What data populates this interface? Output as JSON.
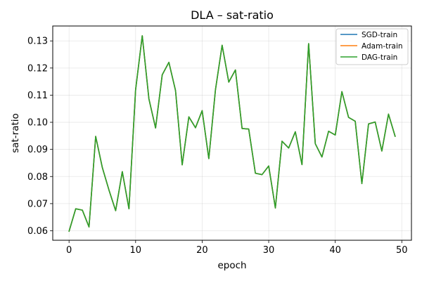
{
  "chart_data": {
    "type": "line",
    "title": "DLA – sat-ratio",
    "xlabel": "epoch",
    "ylabel": "sat-ratio",
    "xlim": [
      -2.45,
      51.45
    ],
    "ylim": [
      0.0565,
      0.1355
    ],
    "xticks": [
      0,
      10,
      20,
      30,
      40,
      50
    ],
    "yticks": [
      0.06,
      0.07,
      0.08,
      0.09,
      0.1,
      0.11,
      0.12,
      0.13
    ],
    "xtick_labels": [
      "0",
      "10",
      "20",
      "30",
      "40",
      "50"
    ],
    "ytick_labels": [
      "0.06",
      "0.07",
      "0.08",
      "0.09",
      "0.10",
      "0.11",
      "0.12",
      "0.13"
    ],
    "grid": true,
    "legend_position": "top-right",
    "x": [
      0,
      1,
      2,
      3,
      4,
      5,
      6,
      7,
      8,
      9,
      10,
      11,
      12,
      13,
      14,
      15,
      16,
      17,
      18,
      19,
      20,
      21,
      22,
      23,
      24,
      25,
      26,
      27,
      28,
      29,
      30,
      31,
      32,
      33,
      34,
      35,
      36,
      37,
      38,
      39,
      40,
      41,
      42,
      43,
      44,
      45,
      46,
      47,
      48,
      49
    ],
    "series": [
      {
        "name": "SGD-train",
        "color": "#1f77b4",
        "values": [
          0.0598,
          0.0681,
          0.0676,
          0.0614,
          0.0948,
          0.0833,
          0.075,
          0.0674,
          0.0818,
          0.0681,
          0.112,
          0.1319,
          0.1086,
          0.0979,
          0.1175,
          0.1221,
          0.1117,
          0.0843,
          0.102,
          0.098,
          0.1043,
          0.0866,
          0.112,
          0.1284,
          0.1148,
          0.1193,
          0.0977,
          0.0975,
          0.0812,
          0.0807,
          0.0839,
          0.0684,
          0.093,
          0.0905,
          0.0965,
          0.0844,
          0.129,
          0.0921,
          0.0872,
          0.0967,
          0.0953,
          0.1113,
          0.1018,
          0.1004,
          0.0774,
          0.0994,
          0.1001,
          0.0894,
          0.103,
          0.0948
        ]
      },
      {
        "name": "Adam-train",
        "color": "#ff7f0e",
        "values": [
          0.0598,
          0.0681,
          0.0676,
          0.0614,
          0.0948,
          0.0833,
          0.075,
          0.0674,
          0.0818,
          0.0681,
          0.112,
          0.1319,
          0.1086,
          0.0979,
          0.1175,
          0.1221,
          0.1117,
          0.0843,
          0.102,
          0.098,
          0.1043,
          0.0866,
          0.112,
          0.1284,
          0.1148,
          0.1193,
          0.0977,
          0.0975,
          0.0812,
          0.0807,
          0.0839,
          0.0684,
          0.093,
          0.0905,
          0.0965,
          0.0844,
          0.129,
          0.0921,
          0.0872,
          0.0967,
          0.0953,
          0.1113,
          0.1018,
          0.1004,
          0.0774,
          0.0994,
          0.1001,
          0.0894,
          0.103,
          0.0948
        ]
      },
      {
        "name": "DAG-train",
        "color": "#2ca02c",
        "values": [
          0.0598,
          0.0681,
          0.0676,
          0.0614,
          0.0948,
          0.0833,
          0.075,
          0.0674,
          0.0818,
          0.0681,
          0.112,
          0.1319,
          0.1086,
          0.0979,
          0.1175,
          0.1221,
          0.1117,
          0.0843,
          0.102,
          0.098,
          0.1043,
          0.0866,
          0.112,
          0.1284,
          0.1148,
          0.1193,
          0.0977,
          0.0975,
          0.0812,
          0.0807,
          0.0839,
          0.0684,
          0.093,
          0.0905,
          0.0965,
          0.0844,
          0.129,
          0.0921,
          0.0872,
          0.0967,
          0.0953,
          0.1113,
          0.1018,
          0.1004,
          0.0774,
          0.0994,
          0.1001,
          0.0894,
          0.103,
          0.0948
        ]
      }
    ]
  }
}
